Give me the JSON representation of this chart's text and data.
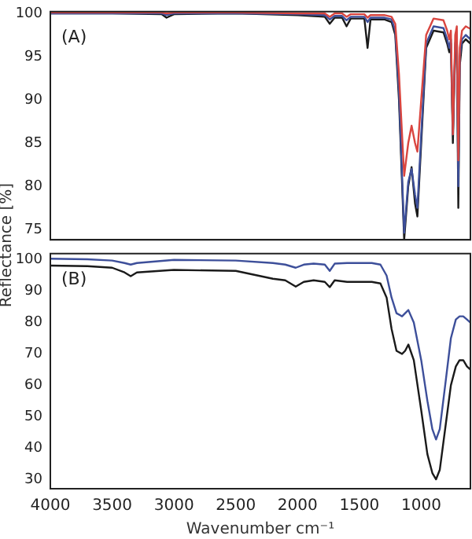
{
  "chart_data": [
    {
      "type": "line",
      "ylabel": "Reflectance [%]",
      "annotations": [
        "(A)"
      ],
      "tick_labels": "y",
      "grid": false,
      "legend": false,
      "marker": "none",
      "line_style": "solid",
      "xlim": [
        4000,
        602
      ],
      "ylim": [
        73.8,
        100.2
      ],
      "yticks": [
        75,
        80,
        85,
        90,
        95,
        100
      ],
      "x": [
        4000,
        3500,
        3100,
        3060,
        3000,
        2500,
        2000,
        1780,
        1740,
        1700,
        1640,
        1604,
        1570,
        1460,
        1434,
        1410,
        1300,
        1240,
        1210,
        1180,
        1138,
        1105,
        1078,
        1050,
        1031,
        1000,
        960,
        900,
        820,
        790,
        773,
        760,
        744,
        725,
        712,
        700,
        688,
        670,
        640,
        602
      ],
      "series": [
        {
          "color": "#d9453f",
          "values": [
            100.1,
            100.1,
            100.1,
            100,
            100.1,
            100.1,
            100,
            100,
            99.6,
            100,
            100,
            99.6,
            99.9,
            99.9,
            99.5,
            99.8,
            99.8,
            99.6,
            98.8,
            93,
            81.2,
            85,
            87,
            85,
            84,
            90,
            97.5,
            99.4,
            99.2,
            98,
            97,
            98,
            86,
            97.5,
            98.5,
            83,
            96,
            98,
            98.5,
            98.2
          ]
        },
        {
          "color": "#3d4f9a",
          "values": [
            100,
            100,
            100,
            99.8,
            100,
            100,
            99.9,
            99.8,
            99.3,
            99.7,
            99.7,
            99.2,
            99.6,
            99.6,
            99,
            99.5,
            99.5,
            99.3,
            98,
            91,
            74.6,
            80.5,
            82,
            79,
            77.5,
            86,
            96.5,
            98.5,
            98.3,
            97,
            96,
            97,
            86,
            96.5,
            97.5,
            80,
            95,
            97,
            97.5,
            97
          ]
        },
        {
          "color": "#1a1a1a",
          "values": [
            100,
            100,
            99.9,
            99.5,
            99.9,
            100,
            99.8,
            99.6,
            98.8,
            99.5,
            99.5,
            98.5,
            99.4,
            99.4,
            96,
            99.3,
            99.3,
            99,
            97.5,
            90,
            73.8,
            80,
            82.2,
            78,
            76.5,
            85,
            96,
            98,
            97.8,
            96.5,
            95.5,
            96.5,
            85,
            96,
            97,
            77.5,
            94,
            96.5,
            97,
            96.5
          ]
        }
      ]
    },
    {
      "type": "line",
      "xlabel": "Wavenumber cm⁻¹",
      "annotations": [
        "(B)"
      ],
      "grid": false,
      "legend": false,
      "marker": "none",
      "line_style": "solid",
      "xlim": [
        4000,
        602
      ],
      "xticks": [
        4000,
        3500,
        3000,
        2500,
        2000,
        1500,
        1000
      ],
      "ylim": [
        27,
        102
      ],
      "yticks": [
        30,
        40,
        50,
        60,
        70,
        80,
        90,
        100
      ],
      "x": [
        4000,
        3700,
        3500,
        3400,
        3350,
        3300,
        3000,
        2500,
        2200,
        2100,
        2015,
        1950,
        1870,
        1780,
        1740,
        1700,
        1600,
        1500,
        1400,
        1330,
        1280,
        1240,
        1200,
        1155,
        1130,
        1104,
        1060,
        1000,
        950,
        910,
        880,
        850,
        800,
        760,
        720,
        690,
        660,
        630,
        602
      ],
      "series": [
        {
          "color": "#3d4f9a",
          "values": [
            100.4,
            100.2,
            99.8,
            99,
            98.5,
            99,
            100,
            99.8,
            99,
            98.5,
            97.5,
            98.5,
            98.8,
            98.5,
            96.5,
            98.8,
            99,
            99,
            99,
            98.5,
            95,
            88,
            83,
            82,
            83,
            84,
            80,
            68,
            55,
            46,
            42.7,
            46,
            62,
            75,
            81,
            82,
            82,
            81,
            80
          ]
        },
        {
          "color": "#1a1a1a",
          "values": [
            98.2,
            98,
            97.5,
            96,
            94.8,
            96,
            96.8,
            96.5,
            94,
            93.5,
            91.5,
            93,
            93.5,
            93,
            91.3,
            93.5,
            93,
            93,
            93,
            92.5,
            88,
            78,
            71,
            70,
            71,
            73,
            68,
            52,
            38,
            32,
            30,
            33,
            48,
            60,
            66,
            68,
            68,
            66,
            65
          ]
        }
      ]
    }
  ]
}
